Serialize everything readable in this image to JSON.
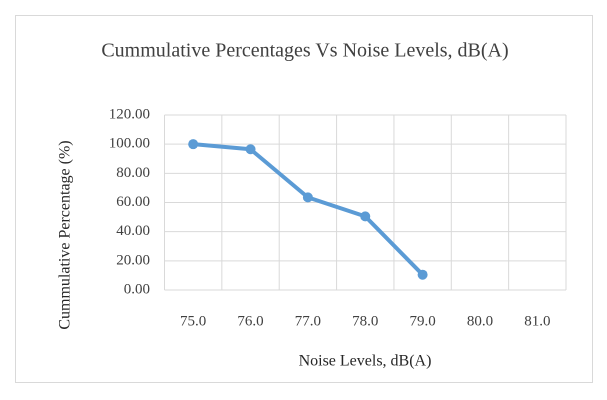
{
  "chart_data": {
    "type": "line",
    "title": "Cummulative Percentages Vs Noise Levels, dB(A)",
    "x_label": "Noise Levels,  dB(A)",
    "y_label": "Cummulative Percentage (%)",
    "categories": [
      "75.0",
      "76.0",
      "77.0",
      "78.0",
      "79.0",
      "80.0",
      "81.0"
    ],
    "series": [
      {
        "name": "Cummulative Percentage",
        "color": "#5b9bd5",
        "values": [
          100,
          96.5,
          63.5,
          50.5,
          10.5,
          null,
          null
        ]
      }
    ],
    "ylim": [
      0,
      120
    ],
    "yticks": [
      {
        "value": 0,
        "label": "0.00"
      },
      {
        "value": 20,
        "label": "20.00"
      },
      {
        "value": 40,
        "label": "40.00"
      },
      {
        "value": 60,
        "label": "60.00"
      },
      {
        "value": 80,
        "label": "80.00"
      },
      {
        "value": 100,
        "label": "100.00"
      },
      {
        "value": 120,
        "label": "120.00"
      }
    ],
    "grid": true
  }
}
